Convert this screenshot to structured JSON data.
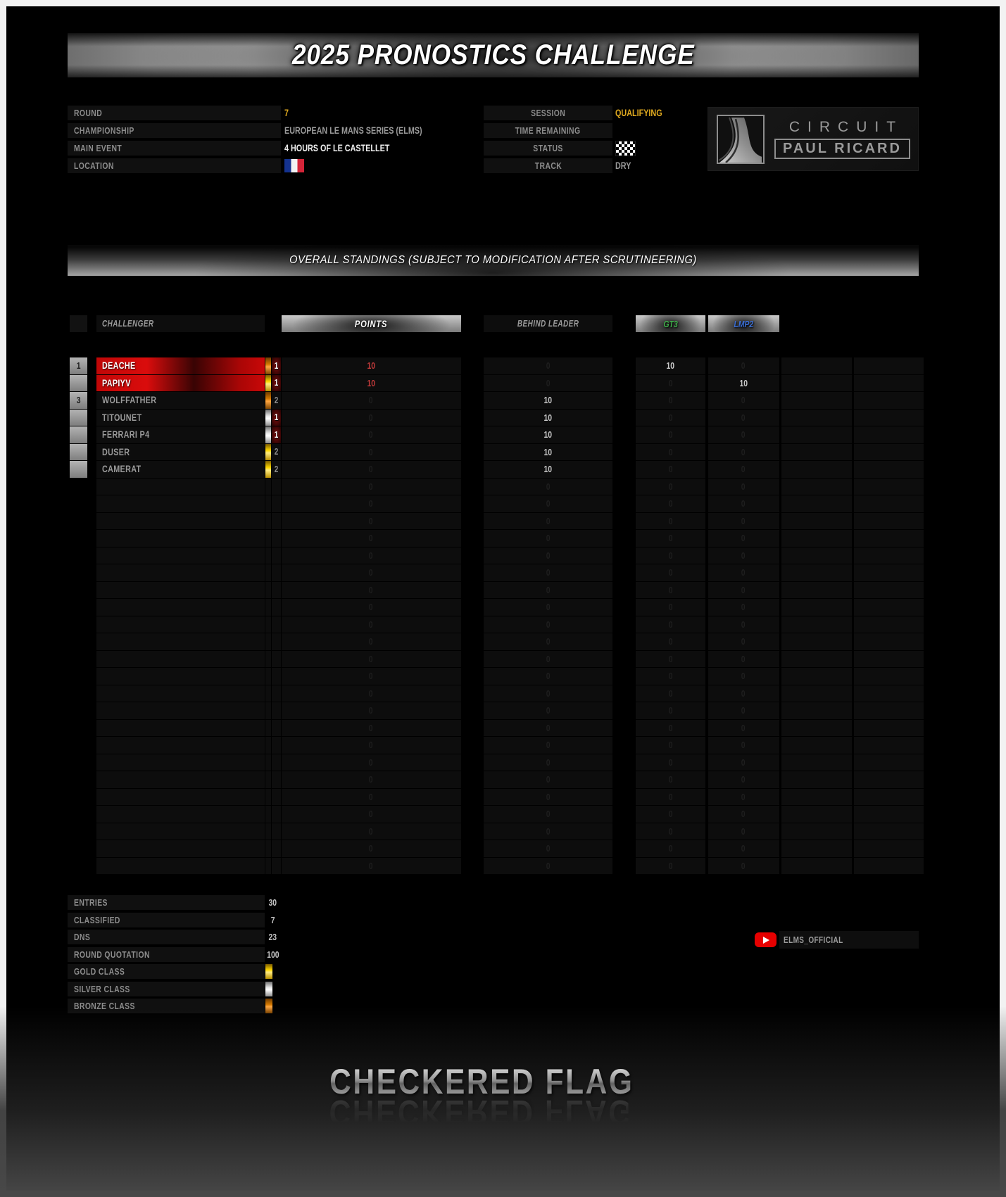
{
  "banner": {
    "title": "2025 PRONOSTICS CHALLENGE"
  },
  "event_info": {
    "left_rows": [
      {
        "label": "ROUND",
        "value": "7",
        "style": "gold"
      },
      {
        "label": "CHAMPIONSHIP",
        "value": "EUROPEAN LE MANS SERIES (ELMS)",
        "style": "dim"
      },
      {
        "label": "MAIN EVENT",
        "value": "4 HOURS OF LE CASTELLET",
        "style": "bright"
      },
      {
        "label": "LOCATION",
        "value": "",
        "icon": "france-flag"
      }
    ],
    "right_rows": [
      {
        "label": "SESSION",
        "value": "QUALIFYING",
        "style": "gold"
      },
      {
        "label": "TIME REMAINING",
        "value": "",
        "style": "dim"
      },
      {
        "label": "STATUS",
        "value": "",
        "icon": "checkered-flag"
      },
      {
        "label": "TRACK",
        "value": "DRY",
        "style": "dim"
      }
    ]
  },
  "circuit_logo": {
    "line1": "CIRCUIT",
    "line2": "PAUL RICARD"
  },
  "standings_banner": {
    "title": "OVERALL STANDINGS (SUBJECT TO MODIFICATION AFTER SCRUTINEERING)"
  },
  "table": {
    "headers": {
      "challenger": "CHALLENGER",
      "points": "POINTS",
      "behind": "BEHIND LEADER",
      "gt3": "GT3",
      "lmp2": "LMP2"
    },
    "rows": [
      {
        "pos": "1",
        "name": "DEACHE",
        "leader": true,
        "class_bar": "bronze",
        "class_num": "1",
        "class_num_hot": true,
        "points": "10",
        "points_hot": true,
        "behind": "0",
        "gt3": "10",
        "gt3_hot": true,
        "lmp2": "0"
      },
      {
        "pos": "",
        "name": "PAPIYV",
        "leader": true,
        "class_bar": "gold",
        "class_num": "1",
        "class_num_hot": true,
        "points": "10",
        "points_hot": true,
        "behind": "0",
        "gt3": "0",
        "lmp2": "10",
        "lmp2_hot": true
      },
      {
        "pos": "3",
        "name": "WOLFFATHER",
        "class_bar": "bronze",
        "class_num": "2",
        "points": "0",
        "behind": "10",
        "behind_hot": true,
        "gt3": "0",
        "lmp2": "0"
      },
      {
        "pos": "",
        "name": "TITOUNET",
        "class_bar": "silver",
        "class_num": "1",
        "class_num_hot": true,
        "points": "0",
        "behind": "10",
        "behind_hot": true,
        "gt3": "0",
        "lmp2": "0"
      },
      {
        "pos": "",
        "name": "FERRARI P4",
        "class_bar": "silver",
        "class_num": "1",
        "class_num_hot": true,
        "points": "0",
        "behind": "10",
        "behind_hot": true,
        "gt3": "0",
        "lmp2": "0"
      },
      {
        "pos": "",
        "name": "DUSER",
        "class_bar": "gold",
        "class_num": "2",
        "points": "0",
        "behind": "10",
        "behind_hot": true,
        "gt3": "0",
        "lmp2": "0"
      },
      {
        "pos": "",
        "name": "CAMERAT",
        "class_bar": "gold",
        "class_num": "2",
        "points": "0",
        "behind": "10",
        "behind_hot": true,
        "gt3": "0",
        "lmp2": "0"
      }
    ],
    "empty_row_count": 23,
    "empty_row": {
      "points": "0",
      "behind": "0",
      "gt3": "0",
      "lmp2": "0"
    }
  },
  "summary": [
    {
      "label": "ENTRIES",
      "value": "30"
    },
    {
      "label": "CLASSIFIED",
      "value": "7"
    },
    {
      "label": "DNS",
      "value": "23"
    },
    {
      "label": "ROUND QUOTATION",
      "value": "100"
    },
    {
      "label": "GOLD CLASS",
      "class_bar": "gold"
    },
    {
      "label": "SILVER CLASS",
      "class_bar": "silver"
    },
    {
      "label": "BRONZE CLASS",
      "class_bar": "bronze"
    }
  ],
  "youtube": {
    "channel": "ELMS_OFFICIAL",
    "brand_color": "#e60000"
  },
  "footer": {
    "title": "CHECKERED FLAG"
  },
  "colors": {
    "accent_gold": "#dfa91f",
    "leader_red": "#c40808",
    "points_red": "#c23a3a",
    "gt3_green": "#3fae4a",
    "lmp2_blue": "#3b6fd6",
    "class_gold": "#ffd700",
    "class_silver": "#e8e8e8",
    "class_bronze": "#d27800"
  }
}
